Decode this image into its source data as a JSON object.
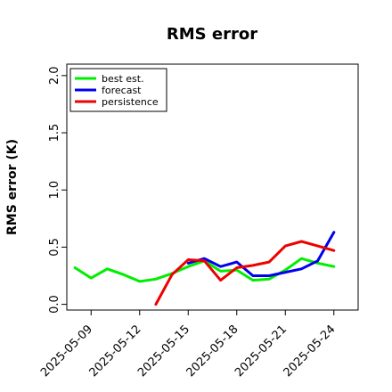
{
  "chart_data": {
    "type": "line",
    "title": "RMS error",
    "xlabel": "",
    "ylabel": "RMS error (K)",
    "xlim": [
      "2025-05-07T12:00",
      "2025-05-25T12:00"
    ],
    "ylim": [
      -0.05,
      2.1
    ],
    "yticks": [
      0.0,
      0.5,
      1.0,
      1.5,
      2.0
    ],
    "ytick_labels": [
      "0.0",
      "0.5",
      "1.0",
      "1.5",
      "2.0"
    ],
    "xticks": [
      "2025-05-09",
      "2025-05-12",
      "2025-05-15",
      "2025-05-18",
      "2025-05-21",
      "2025-05-24"
    ],
    "xtick_labels": [
      "2025-05-09",
      "2025-05-12",
      "2025-05-15",
      "2025-05-18",
      "2025-05-21",
      "2025-05-24"
    ],
    "xtick_highlight": "2025-05-15",
    "xtick_highlight_color": "#2e8b2e",
    "grid": false,
    "legend_position": "top-left",
    "series": [
      {
        "name": "best est.",
        "color": "#00ee00",
        "x": [
          "2025-05-08",
          "2025-05-09",
          "2025-05-10",
          "2025-05-11",
          "2025-05-12",
          "2025-05-13",
          "2025-05-14",
          "2025-05-15",
          "2025-05-16",
          "2025-05-17",
          "2025-05-18",
          "2025-05-19",
          "2025-05-20",
          "2025-05-21",
          "2025-05-22",
          "2025-05-23",
          "2025-05-24"
        ],
        "values": [
          0.32,
          0.23,
          0.31,
          0.26,
          0.2,
          0.22,
          0.27,
          0.33,
          0.38,
          0.29,
          0.3,
          0.21,
          0.22,
          0.3,
          0.4,
          0.36,
          0.33
        ]
      },
      {
        "name": "forecast",
        "color": "#0000ee",
        "x": [
          "2025-05-15",
          "2025-05-16",
          "2025-05-17",
          "2025-05-18",
          "2025-05-19",
          "2025-05-20",
          "2025-05-21",
          "2025-05-22",
          "2025-05-23",
          "2025-05-24"
        ],
        "values": [
          0.36,
          0.4,
          0.33,
          0.37,
          0.25,
          0.25,
          0.28,
          0.31,
          0.38,
          0.63
        ]
      },
      {
        "name": "persistence",
        "color": "#ee0000",
        "x": [
          "2025-05-13",
          "2025-05-14",
          "2025-05-15",
          "2025-05-16",
          "2025-05-17",
          "2025-05-18",
          "2025-05-19",
          "2025-05-20",
          "2025-05-21",
          "2025-05-22",
          "2025-05-23",
          "2025-05-24"
        ],
        "values": [
          0.0,
          0.26,
          0.39,
          0.38,
          0.21,
          0.32,
          0.34,
          0.37,
          0.51,
          0.55,
          0.51,
          0.47
        ]
      }
    ]
  }
}
